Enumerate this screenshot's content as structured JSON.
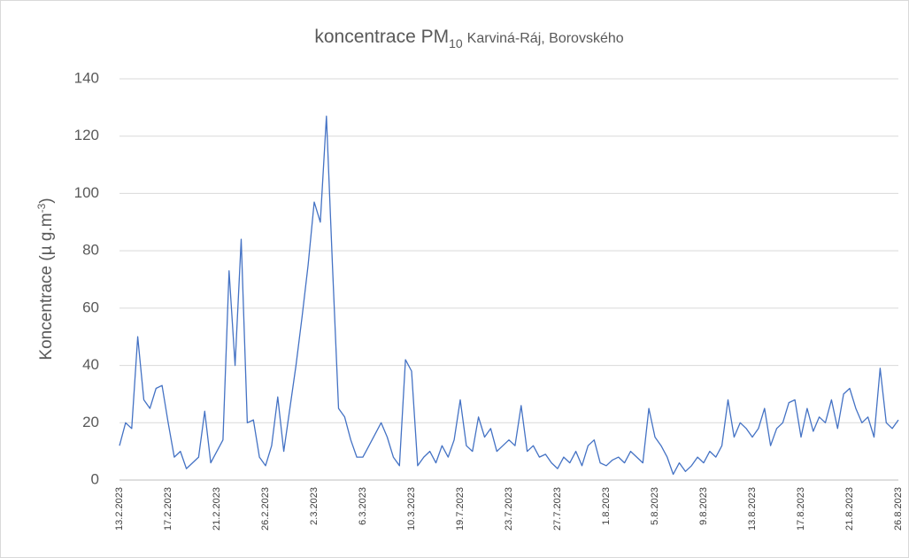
{
  "chart_data": {
    "type": "line",
    "title": "koncentrace PM",
    "title_subscript": "10",
    "title_station": "Karviná-Ráj, Borovského",
    "y_label": "Koncentrace (µ g.m",
    "y_label_superscript": "-3",
    "y_label_end": ")",
    "categories": [
      "13.2.2023",
      null,
      null,
      null,
      null,
      null,
      null,
      null,
      "17.2.2023",
      null,
      null,
      null,
      null,
      null,
      null,
      null,
      "21.2.2023",
      null,
      null,
      null,
      null,
      null,
      null,
      null,
      "26.2.2023",
      null,
      null,
      null,
      null,
      null,
      null,
      null,
      "2.3.2023",
      null,
      null,
      null,
      null,
      null,
      null,
      null,
      "6.3.2023",
      null,
      null,
      null,
      null,
      null,
      null,
      null,
      "10.3.2023",
      null,
      null,
      null,
      null,
      null,
      null,
      null,
      "19.7.2023",
      null,
      null,
      null,
      null,
      null,
      null,
      null,
      "23.7.2023",
      null,
      null,
      null,
      null,
      null,
      null,
      null,
      "27.7.2023",
      null,
      null,
      null,
      null,
      null,
      null,
      null,
      "1.8.2023",
      null,
      null,
      null,
      null,
      null,
      null,
      null,
      "5.8.2023",
      null,
      null,
      null,
      null,
      null,
      null,
      null,
      "9.8.2023",
      null,
      null,
      null,
      null,
      null,
      null,
      null,
      "13.8.2023",
      null,
      null,
      null,
      null,
      null,
      null,
      null,
      "17.8.2023",
      null,
      null,
      null,
      null,
      null,
      null,
      null,
      "21.8.2023",
      null,
      null,
      null,
      null,
      null,
      null,
      null,
      "26.8.2023"
    ],
    "values": [
      12,
      20,
      18,
      50,
      28,
      25,
      32,
      33,
      20,
      8,
      10,
      4,
      6,
      8,
      24,
      6,
      10,
      14,
      73,
      40,
      84,
      20,
      21,
      8,
      5,
      12,
      29,
      10,
      25,
      40,
      57,
      75,
      97,
      90,
      127,
      75,
      25,
      22,
      14,
      8,
      8,
      12,
      16,
      20,
      15,
      8,
      5,
      42,
      38,
      5,
      8,
      10,
      6,
      12,
      8,
      14,
      28,
      12,
      10,
      22,
      15,
      18,
      10,
      12,
      14,
      12,
      26,
      10,
      12,
      8,
      9,
      6,
      4,
      8,
      6,
      10,
      5,
      12,
      14,
      6,
      5,
      7,
      8,
      6,
      10,
      8,
      6,
      25,
      15,
      12,
      8,
      2,
      6,
      3,
      5,
      8,
      6,
      10,
      8,
      12,
      28,
      15,
      20,
      18,
      15,
      18,
      25,
      12,
      18,
      20,
      27,
      28,
      15,
      25,
      17,
      22,
      20,
      28,
      18,
      30,
      32,
      25,
      20,
      22,
      15,
      39,
      20,
      18,
      21
    ],
    "color": "#4472c4",
    "ylim": [
      0,
      140
    ],
    "yticks": [
      0,
      20,
      40,
      60,
      80,
      100,
      120,
      140
    ],
    "grid": true
  }
}
